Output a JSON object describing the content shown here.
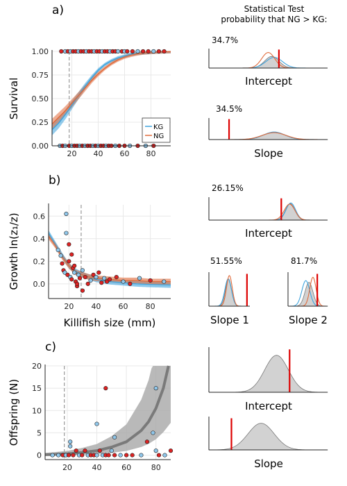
{
  "colors": {
    "kg": "#3da3dd",
    "ng": "#e06a3a",
    "grey": "#7a7a7a",
    "red": "#dd0000",
    "dotBlue": "#8fc6ea",
    "dotRed": "#dd2222"
  },
  "header": {
    "line1": "Statistical Test",
    "line2": "probability that NG > KG:"
  },
  "panels": {
    "a": "a)",
    "b": "b)",
    "c": "c)"
  },
  "chart_data": [
    {
      "id": "a",
      "type": "line",
      "ylabel": "Survival",
      "xlim": [
        5,
        95
      ],
      "ylim": [
        0,
        1
      ],
      "xticks": [
        20,
        40,
        60,
        80
      ],
      "yticks": [
        "0.00",
        "0.25",
        "0.50",
        "0.75",
        "1.00"
      ],
      "ytickvals": [
        0,
        0.25,
        0.5,
        0.75,
        1
      ],
      "threshold_x": 18,
      "legend": {
        "position": "bottom-right",
        "entries": [
          "KG",
          "NG"
        ]
      },
      "series": [
        {
          "name": "KG",
          "x": [
            5,
            10,
            15,
            20,
            25,
            30,
            35,
            40,
            45,
            50,
            55,
            60,
            65,
            70,
            75,
            80,
            85,
            90,
            95
          ],
          "y": [
            0.17,
            0.24,
            0.33,
            0.43,
            0.53,
            0.63,
            0.72,
            0.8,
            0.86,
            0.9,
            0.93,
            0.95,
            0.97,
            0.98,
            0.985,
            0.99,
            0.995,
            0.997,
            0.999
          ]
        },
        {
          "name": "NG",
          "x": [
            5,
            10,
            15,
            20,
            25,
            30,
            35,
            40,
            45,
            50,
            55,
            60,
            65,
            70,
            75,
            80,
            85,
            90,
            95
          ],
          "y": [
            0.23,
            0.3,
            0.37,
            0.45,
            0.53,
            0.61,
            0.69,
            0.76,
            0.82,
            0.87,
            0.91,
            0.94,
            0.96,
            0.975,
            0.985,
            0.99,
            0.994,
            0.996,
            0.998
          ]
        }
      ],
      "points_top": {
        "x": [
          12,
          15,
          17,
          19,
          21,
          23,
          25,
          27,
          29,
          31,
          33,
          35,
          37,
          39,
          41,
          43,
          45,
          47,
          49,
          51,
          53,
          55,
          58,
          60,
          62,
          66,
          70,
          74,
          78,
          82,
          86,
          90
        ],
        "group": [
          "NG",
          "KG",
          "NG",
          "KG",
          "NG",
          "NG",
          "KG",
          "NG",
          "NG",
          "KG",
          "NG",
          "NG",
          "KG",
          "NG",
          "NG",
          "KG",
          "NG",
          "NG",
          "KG",
          "NG",
          "NG",
          "KG",
          "NG",
          "KG",
          "NG",
          "NG",
          "KG",
          "NG",
          "NG",
          "KG",
          "NG",
          "NG"
        ]
      },
      "points_bottom": {
        "x": [
          11,
          13,
          15,
          18,
          20,
          22,
          24,
          26,
          28,
          30,
          32,
          34,
          36,
          38,
          40,
          42,
          44,
          46,
          48,
          50,
          53,
          56,
          60,
          64,
          70,
          76,
          82
        ],
        "group": [
          "KG",
          "NG",
          "KG",
          "NG",
          "KG",
          "NG",
          "NG",
          "KG",
          "NG",
          "KG",
          "NG",
          "NG",
          "KG",
          "NG",
          "KG",
          "NG",
          "NG",
          "KG",
          "NG",
          "NG",
          "KG",
          "NG",
          "NG",
          "KG",
          "NG",
          "KG",
          "NG"
        ]
      }
    },
    {
      "id": "b",
      "type": "scatter",
      "ylabel": "Growth ln(z₁/z)",
      "xlabel": "Killifish size (mm)",
      "xlim": [
        5,
        95
      ],
      "ylim": [
        -0.13,
        0.7
      ],
      "xticks": [
        20,
        40,
        60,
        80
      ],
      "yticks": [
        "0.0",
        "0.2",
        "0.4",
        "0.6"
      ],
      "ytickvals": [
        0,
        0.2,
        0.4,
        0.6
      ],
      "threshold_x": 29,
      "series": [
        {
          "name": "KG",
          "x": [
            5,
            10,
            15,
            20,
            25,
            30,
            35,
            40,
            50,
            60,
            70,
            80,
            95
          ],
          "y": [
            0.45,
            0.35,
            0.25,
            0.16,
            0.11,
            0.08,
            0.06,
            0.04,
            0.02,
            0.01,
            0.0,
            -0.005,
            -0.01
          ]
        },
        {
          "name": "NG",
          "x": [
            5,
            10,
            15,
            20,
            25,
            30,
            35,
            40,
            50,
            60,
            70,
            80,
            95
          ],
          "y": [
            0.42,
            0.34,
            0.24,
            0.16,
            0.1,
            0.08,
            0.06,
            0.05,
            0.04,
            0.03,
            0.03,
            0.02,
            0.02
          ]
        }
      ],
      "points": {
        "x": [
          12,
          14,
          15,
          16,
          17,
          18,
          19,
          20,
          21,
          22,
          23,
          24,
          25,
          26,
          27,
          28,
          30,
          32,
          34,
          36,
          38,
          40,
          42,
          44,
          46,
          48,
          50,
          55,
          60,
          65,
          72,
          80,
          90,
          18,
          20,
          22,
          24,
          26,
          30
        ],
        "y": [
          0.3,
          0.25,
          0.18,
          0.12,
          0.1,
          0.62,
          0.08,
          0.2,
          0.06,
          0.04,
          0.14,
          0.1,
          0.02,
          -0.02,
          0.08,
          0.05,
          0.12,
          0.06,
          0.0,
          0.03,
          0.08,
          0.06,
          0.1,
          0.01,
          0.05,
          0.02,
          0.04,
          0.06,
          0.02,
          0.0,
          0.05,
          0.03,
          0.02,
          0.45,
          0.35,
          0.26,
          0.16,
          0.0,
          -0.06
        ],
        "group": [
          "KG",
          "KG",
          "NG",
          "NG",
          "KG",
          "KG",
          "NG",
          "NG",
          "KG",
          "NG",
          "NG",
          "KG",
          "NG",
          "NG",
          "KG",
          "NG",
          "KG",
          "NG",
          "NG",
          "KG",
          "NG",
          "KG",
          "NG",
          "NG",
          "KG",
          "NG",
          "NG",
          "NG",
          "KG",
          "NG",
          "KG",
          "NG",
          "KG",
          "KG",
          "NG",
          "NG",
          "NG",
          "NG",
          "NG"
        ]
      }
    },
    {
      "id": "c",
      "type": "scatter",
      "ylabel": "Offspring (N)",
      "xlim": [
        5,
        90
      ],
      "ylim": [
        -1,
        20
      ],
      "xticks": [
        20,
        40,
        60,
        80
      ],
      "yticks": [
        "0",
        "5",
        "10",
        "15",
        "20"
      ],
      "ytickvals": [
        0,
        5,
        10,
        15,
        20
      ],
      "threshold_x": 18,
      "series": [
        {
          "name": "fit",
          "x": [
            5,
            10,
            20,
            30,
            40,
            50,
            60,
            70,
            75,
            80,
            85,
            90
          ],
          "y": [
            0.1,
            0.15,
            0.3,
            0.6,
            1.0,
            1.8,
            3.0,
            5.5,
            7.5,
            10.5,
            15.0,
            21.0
          ]
        }
      ],
      "points": {
        "x": [
          10,
          14,
          17,
          19,
          21,
          22,
          24,
          26,
          28,
          30,
          32,
          34,
          36,
          38,
          40,
          42,
          44,
          46,
          48,
          50,
          52,
          56,
          60,
          64,
          70,
          74,
          78,
          80,
          82,
          86,
          90,
          46,
          80,
          40,
          52,
          22
        ],
        "y": [
          0,
          0,
          0,
          0,
          0,
          2,
          0,
          1,
          0,
          0,
          1,
          0,
          0,
          0,
          0,
          1,
          0,
          0,
          0,
          1,
          0,
          0,
          0,
          0,
          0,
          3,
          5,
          1,
          0,
          0,
          1,
          15,
          15,
          7,
          4,
          3
        ],
        "group": [
          "KG",
          "KG",
          "NG",
          "KG",
          "NG",
          "KG",
          "NG",
          "NG",
          "KG",
          "NG",
          "NG",
          "KG",
          "NG",
          "NG",
          "KG",
          "NG",
          "KG",
          "NG",
          "NG",
          "KG",
          "NG",
          "KG",
          "NG",
          "NG",
          "KG",
          "NG",
          "KG",
          "KG",
          "NG",
          "KG",
          "NG",
          "NG",
          "KG",
          "KG",
          "KG",
          "KG"
        ]
      }
    }
  ],
  "posteriors": [
    {
      "id": "a-intercept",
      "label": "Intercept",
      "pct": "34.7%"
    },
    {
      "id": "a-slope",
      "label": "Slope",
      "pct": "34.5%"
    },
    {
      "id": "b-intercept",
      "label": "Intercept",
      "pct": "26.15%"
    },
    {
      "id": "b-slope1",
      "label": "Slope 1",
      "pct": "51.55%"
    },
    {
      "id": "b-slope2",
      "label": "Slope 2",
      "pct": "81.7%"
    },
    {
      "id": "c-intercept",
      "label": "Intercept"
    },
    {
      "id": "c-slope",
      "label": "Slope"
    }
  ]
}
